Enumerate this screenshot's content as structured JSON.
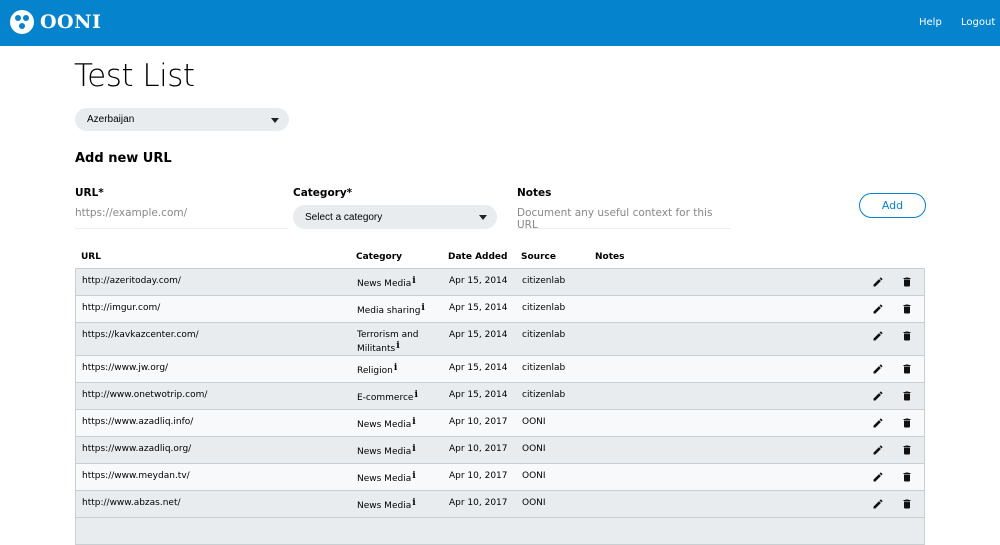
{
  "header": {
    "brand": "OONI",
    "nav": [
      {
        "label": "Help"
      },
      {
        "label": "Logout"
      }
    ],
    "color": "#0583cc"
  },
  "page": {
    "title": "Test List",
    "country": "Azerbaijan"
  },
  "form": {
    "heading": "Add new URL",
    "url_label": "URL*",
    "url_placeholder": "https://example.com/",
    "category_label": "Category*",
    "category_placeholder": "Select a category",
    "notes_label": "Notes",
    "notes_placeholder": "Document any useful context for this URL",
    "add_label": "Add"
  },
  "table": {
    "columns": [
      "URL",
      "Category",
      "Date Added",
      "Source",
      "Notes"
    ],
    "rows": [
      {
        "url": "http://azeritoday.com/",
        "category": "News Media",
        "date": "Apr 15, 2014",
        "source": "citizenlab",
        "notes": ""
      },
      {
        "url": "http://imgur.com/",
        "category": "Media sharing",
        "date": "Apr 15, 2014",
        "source": "citizenlab",
        "notes": ""
      },
      {
        "url": "https://kavkazcenter.com/",
        "category": "Terrorism and Militants",
        "date": "Apr 15, 2014",
        "source": "citizenlab",
        "notes": ""
      },
      {
        "url": "https://www.jw.org/",
        "category": "Religion",
        "date": "Apr 15, 2014",
        "source": "citizenlab",
        "notes": ""
      },
      {
        "url": "http://www.onetwotrip.com/",
        "category": "E-commerce",
        "date": "Apr 15, 2014",
        "source": "citizenlab",
        "notes": ""
      },
      {
        "url": "https://www.azadliq.info/",
        "category": "News Media",
        "date": "Apr 10, 2017",
        "source": "OONI",
        "notes": ""
      },
      {
        "url": "https://www.azadliq.org/",
        "category": "News Media",
        "date": "Apr 10, 2017",
        "source": "OONI",
        "notes": ""
      },
      {
        "url": "https://www.meydan.tv/",
        "category": "News Media",
        "date": "Apr 10, 2017",
        "source": "OONI",
        "notes": ""
      },
      {
        "url": "http://www.abzas.net/",
        "category": "News Media",
        "date": "Apr 10, 2017",
        "source": "OONI",
        "notes": ""
      }
    ],
    "info_glyph": "i"
  }
}
